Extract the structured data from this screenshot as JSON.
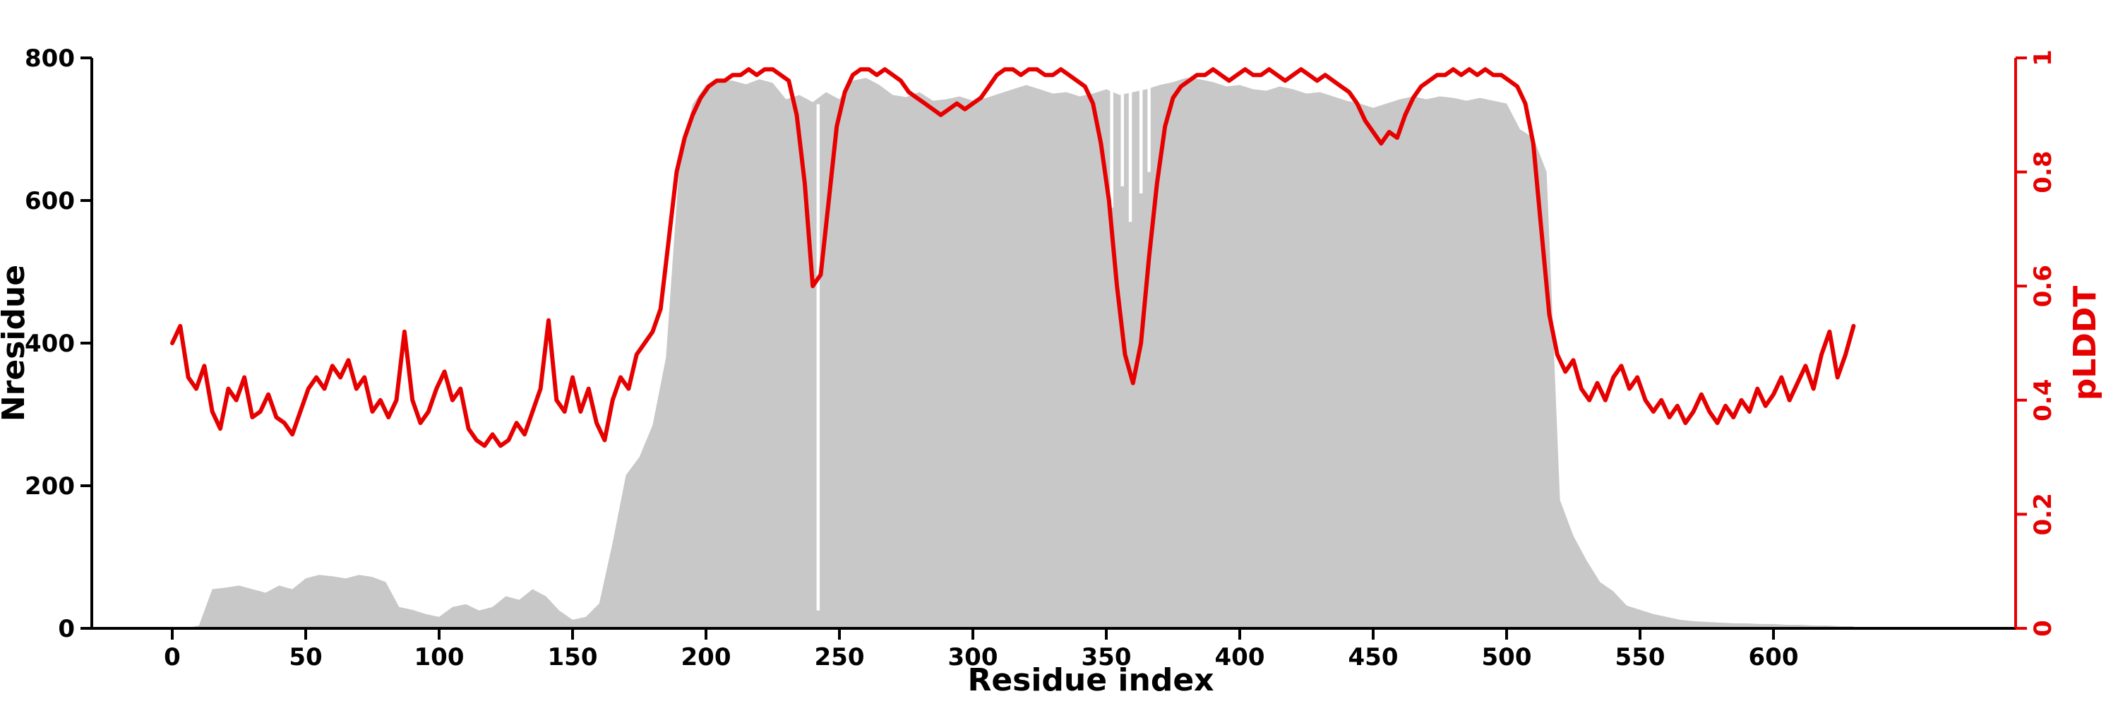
{
  "chart_data": {
    "type": "line",
    "title": "",
    "x_label": "Residue index",
    "y_left_label": "Nresidue",
    "y_right_label": "pLDDT",
    "x_ticks": [
      0,
      50,
      100,
      150,
      200,
      250,
      300,
      350,
      400,
      450,
      500,
      550,
      600
    ],
    "y_left_ticks": [
      0,
      200,
      400,
      600,
      800
    ],
    "y_right_ticks": [
      0,
      0.2,
      0.4,
      0.6,
      0.8,
      1
    ],
    "x_range": [
      0,
      630
    ],
    "y_left_range": [
      0,
      800
    ],
    "y_right_range": [
      0,
      1
    ],
    "grid": false,
    "legend": "none",
    "colors": {
      "area": "#c8c8c8",
      "line": "#e60000",
      "left_axis": "#000000",
      "right_axis": "#e60000",
      "background": "#ffffff"
    },
    "series": [
      {
        "name": "Nresidue",
        "type": "area",
        "axis": "left",
        "x0": 0,
        "dx": 5,
        "values": [
          0,
          0,
          4,
          55,
          57,
          60,
          55,
          50,
          60,
          55,
          70,
          75,
          73,
          70,
          75,
          72,
          65,
          30,
          26,
          20,
          16,
          30,
          34,
          25,
          30,
          45,
          40,
          55,
          45,
          25,
          12,
          16,
          35,
          120,
          215,
          240,
          285,
          380,
          650,
          735,
          762,
          770,
          768,
          763,
          770,
          765,
          742,
          748,
          738,
          752,
          742,
          768,
          772,
          762,
          748,
          745,
          752,
          740,
          742,
          746,
          740,
          744,
          750,
          756,
          762,
          756,
          750,
          752,
          746,
          750,
          756,
          748,
          752,
          756,
          762,
          766,
          772,
          770,
          766,
          760,
          762,
          756,
          754,
          760,
          756,
          750,
          752,
          746,
          740,
          736,
          730,
          736,
          742,
          746,
          742,
          746,
          744,
          740,
          744,
          740,
          736,
          700,
          688,
          640,
          180,
          130,
          95,
          65,
          52,
          32,
          26,
          20,
          16,
          12,
          10,
          9,
          8,
          7,
          7,
          6,
          6,
          5,
          5,
          4,
          4,
          3,
          3
        ]
      },
      {
        "name": "pLDDT",
        "type": "line",
        "axis": "right",
        "x0": 0,
        "dx": 3,
        "values": [
          0.5,
          0.53,
          0.44,
          0.42,
          0.46,
          0.38,
          0.35,
          0.42,
          0.4,
          0.44,
          0.37,
          0.38,
          0.41,
          0.37,
          0.36,
          0.34,
          0.38,
          0.42,
          0.44,
          0.42,
          0.46,
          0.44,
          0.47,
          0.42,
          0.44,
          0.38,
          0.4,
          0.37,
          0.4,
          0.52,
          0.4,
          0.36,
          0.38,
          0.42,
          0.45,
          0.4,
          0.42,
          0.35,
          0.33,
          0.32,
          0.34,
          0.32,
          0.33,
          0.36,
          0.34,
          0.38,
          0.42,
          0.54,
          0.4,
          0.38,
          0.44,
          0.38,
          0.42,
          0.36,
          0.33,
          0.4,
          0.44,
          0.42,
          0.48,
          0.5,
          0.52,
          0.56,
          0.68,
          0.8,
          0.86,
          0.9,
          0.93,
          0.95,
          0.96,
          0.96,
          0.97,
          0.97,
          0.98,
          0.97,
          0.98,
          0.98,
          0.97,
          0.96,
          0.9,
          0.78,
          0.6,
          0.62,
          0.75,
          0.88,
          0.94,
          0.97,
          0.98,
          0.98,
          0.97,
          0.98,
          0.97,
          0.96,
          0.94,
          0.93,
          0.92,
          0.91,
          0.9,
          0.91,
          0.92,
          0.91,
          0.92,
          0.93,
          0.95,
          0.97,
          0.98,
          0.98,
          0.97,
          0.98,
          0.98,
          0.97,
          0.97,
          0.98,
          0.97,
          0.96,
          0.95,
          0.92,
          0.85,
          0.75,
          0.6,
          0.48,
          0.43,
          0.5,
          0.65,
          0.78,
          0.88,
          0.93,
          0.95,
          0.96,
          0.97,
          0.97,
          0.98,
          0.97,
          0.96,
          0.97,
          0.98,
          0.97,
          0.97,
          0.98,
          0.97,
          0.96,
          0.97,
          0.98,
          0.97,
          0.96,
          0.97,
          0.96,
          0.95,
          0.94,
          0.92,
          0.89,
          0.87,
          0.85,
          0.87,
          0.86,
          0.9,
          0.93,
          0.95,
          0.96,
          0.97,
          0.97,
          0.98,
          0.97,
          0.98,
          0.97,
          0.98,
          0.97,
          0.97,
          0.96,
          0.95,
          0.92,
          0.85,
          0.7,
          0.55,
          0.48,
          0.45,
          0.47,
          0.42,
          0.4,
          0.43,
          0.4,
          0.44,
          0.46,
          0.42,
          0.44,
          0.4,
          0.38,
          0.4,
          0.37,
          0.39,
          0.36,
          0.38,
          0.41,
          0.38,
          0.36,
          0.39,
          0.37,
          0.4,
          0.38,
          0.42,
          0.39,
          0.41,
          0.44,
          0.4,
          0.43,
          0.46,
          0.42,
          0.48,
          0.52,
          0.44,
          0.48,
          0.53
        ]
      }
    ],
    "area_gaps": [
      {
        "x": 242,
        "y0": 25,
        "y1": 735
      },
      {
        "x": 352,
        "y0": 590,
        "y1": 768
      },
      {
        "x": 356,
        "y0": 620,
        "y1": 766
      },
      {
        "x": 359,
        "y0": 570,
        "y1": 768
      },
      {
        "x": 363,
        "y0": 610,
        "y1": 764
      },
      {
        "x": 366,
        "y0": 640,
        "y1": 762
      }
    ]
  }
}
